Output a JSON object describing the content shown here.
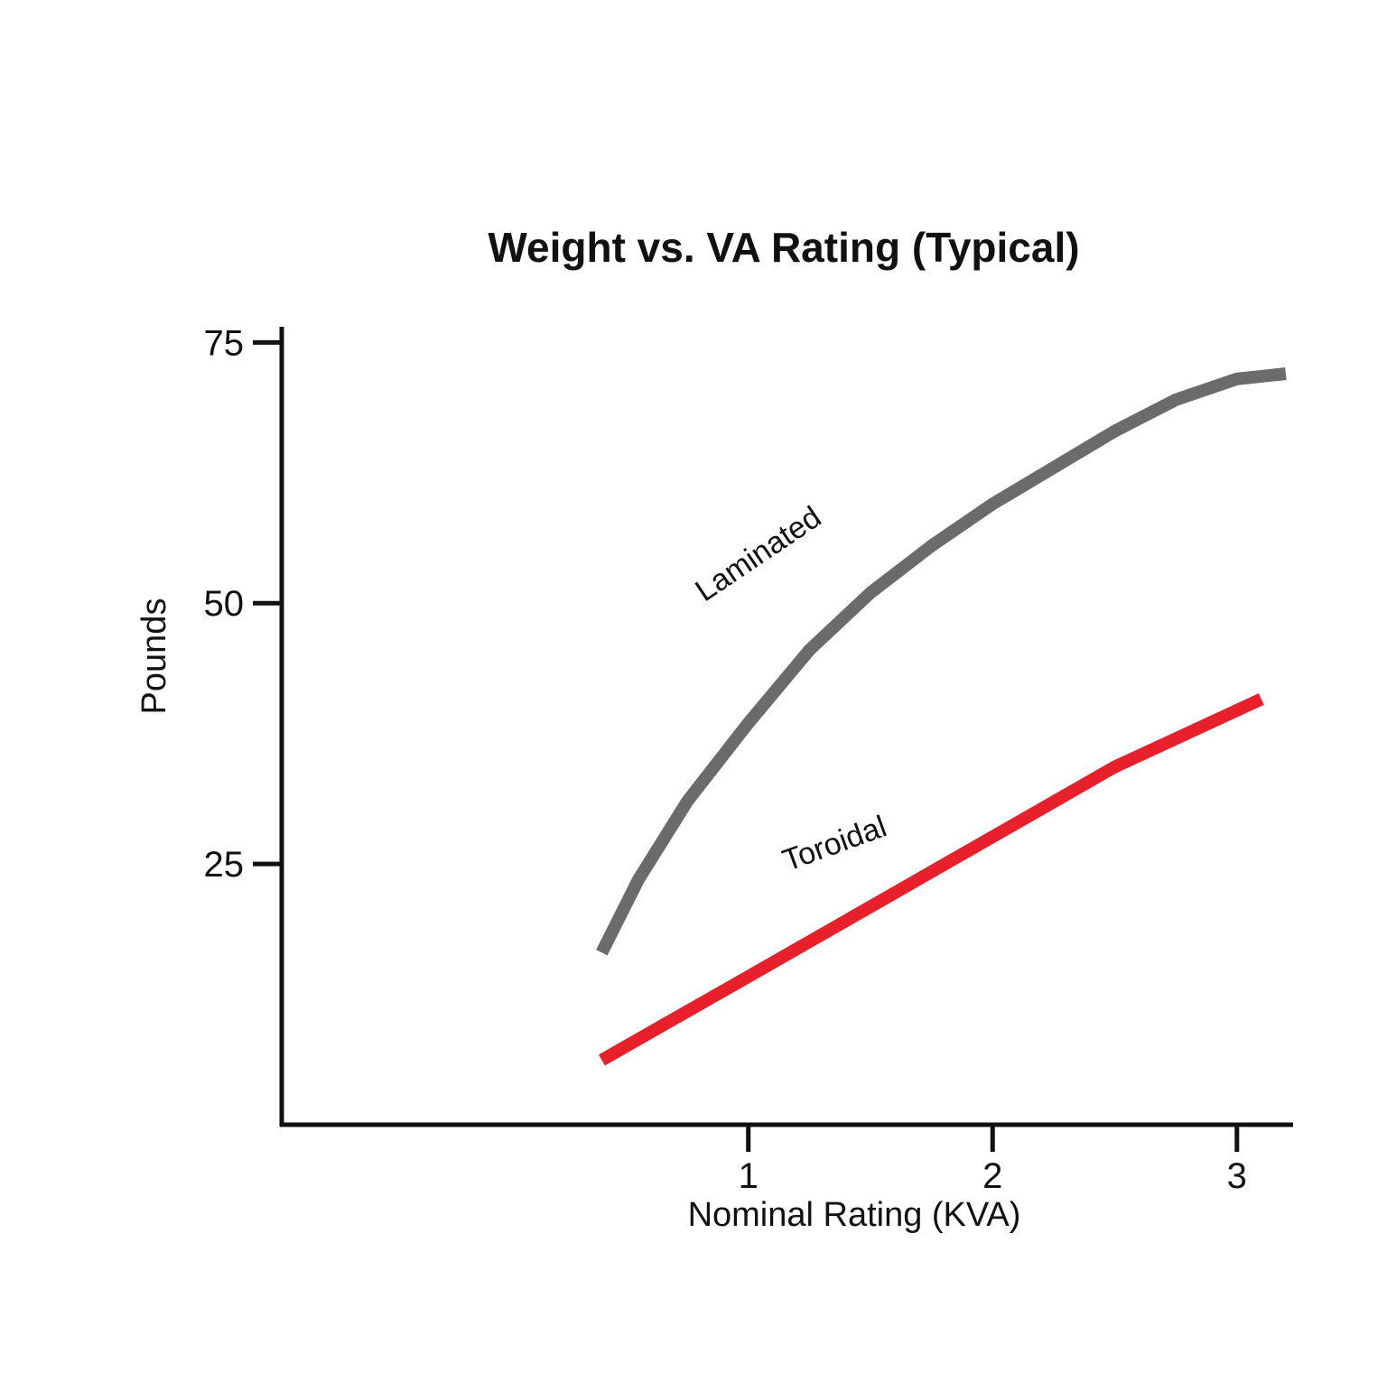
{
  "chart_data": {
    "type": "line",
    "title": "Weight vs. VA Rating (Typical)",
    "xlabel": "Nominal Rating (KVA)",
    "ylabel": "Pounds",
    "xlim": [
      -0.91,
      3.23
    ],
    "ylim": [
      0,
      76.5
    ],
    "xticks": [
      1,
      2,
      3
    ],
    "xtick_labels": [
      "1",
      "2",
      "3"
    ],
    "yticks": [
      25,
      50,
      75
    ],
    "ytick_labels": [
      "25",
      "50",
      "75"
    ],
    "grid": false,
    "legend": "none",
    "series": [
      {
        "name": "Laminated",
        "color": "#6b6b6b",
        "x": [
          0.4,
          0.55,
          0.75,
          1.0,
          1.25,
          1.5,
          1.75,
          2.0,
          2.25,
          2.5,
          2.75,
          3.0,
          3.2
        ],
        "y": [
          16.5,
          23.5,
          31,
          38.5,
          45.5,
          51,
          55.5,
          59.5,
          63,
          66.5,
          69.5,
          71.5,
          72
        ]
      },
      {
        "name": "Toroidal",
        "color": "#e8202c",
        "x": [
          0.4,
          1.0,
          1.5,
          2.0,
          2.5,
          3.1
        ],
        "y": [
          6.2,
          14.2,
          20.9,
          27.6,
          34.3,
          40.8
        ]
      }
    ]
  }
}
